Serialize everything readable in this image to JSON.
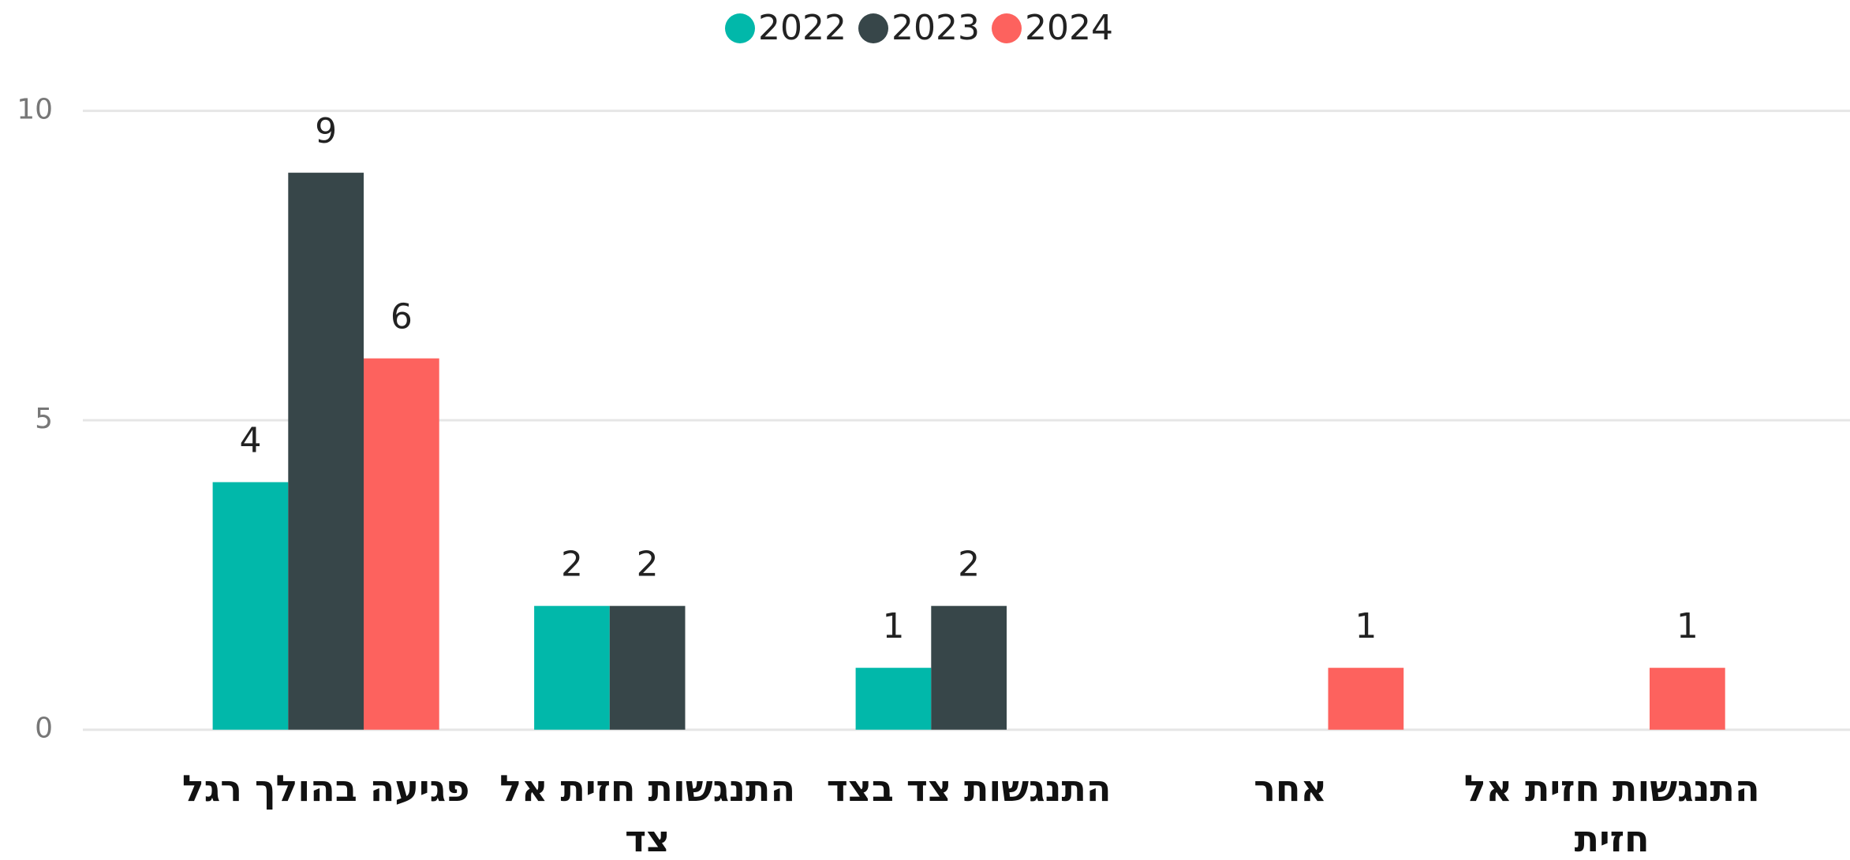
{
  "chart_data": {
    "type": "bar",
    "categories": [
      "פגיעה בהולך רגל",
      "התנגשות חזית אל צד",
      "התנגשות צד בצד",
      "אחר",
      "התנגשות חזית אל חזית"
    ],
    "series": [
      {
        "name": "2022",
        "color": "#01b8aa",
        "values": [
          4,
          2,
          1,
          null,
          null
        ]
      },
      {
        "name": "2023",
        "color": "#374649",
        "values": [
          9,
          2,
          2,
          null,
          null
        ]
      },
      {
        "name": "2024",
        "color": "#fd625e",
        "values": [
          6,
          null,
          null,
          1,
          1
        ]
      }
    ],
    "ylim": [
      0,
      10
    ],
    "yticks": [
      0,
      5,
      10
    ],
    "grid": true,
    "legend": "top"
  }
}
